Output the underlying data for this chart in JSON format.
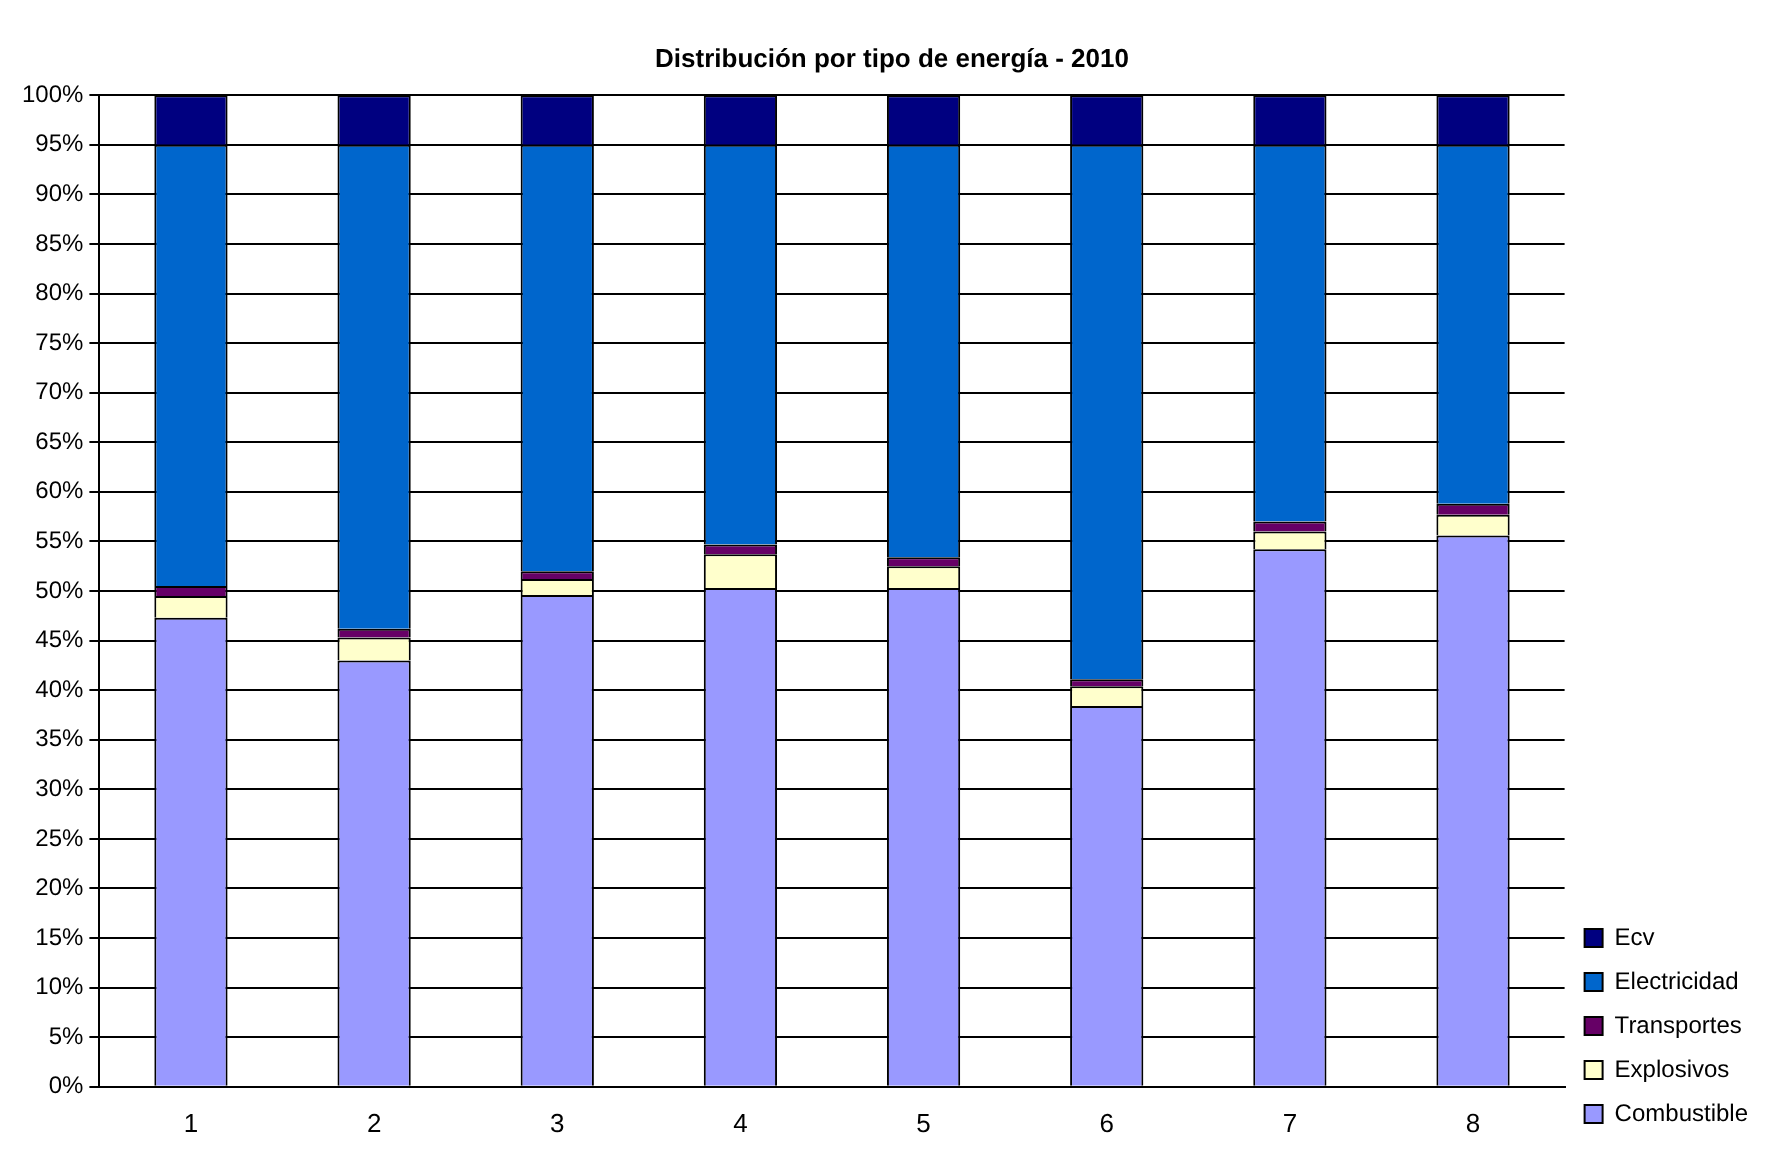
{
  "chart_data": {
    "type": "bar",
    "title": "Distribución por tipo de energía - 2010",
    "categories": [
      "1",
      "2",
      "3",
      "4",
      "5",
      "6",
      "7",
      "8"
    ],
    "stacked": true,
    "legend": "bottom right",
    "grid": "y",
    "ylim": [
      0,
      100
    ],
    "yticks": [
      {
        "value": 0,
        "label": "0%"
      },
      {
        "value": 5,
        "label": "5%"
      },
      {
        "value": 10,
        "label": "10%"
      },
      {
        "value": 15,
        "label": "15%"
      },
      {
        "value": 20,
        "label": "20%"
      },
      {
        "value": 25,
        "label": "25%"
      },
      {
        "value": 30,
        "label": "30%"
      },
      {
        "value": 35,
        "label": "35%"
      },
      {
        "value": 40,
        "label": "40%"
      },
      {
        "value": 45,
        "label": "45%"
      },
      {
        "value": 50,
        "label": "50%"
      },
      {
        "value": 55,
        "label": "55%"
      },
      {
        "value": 60,
        "label": "60%"
      },
      {
        "value": 65,
        "label": "65%"
      },
      {
        "value": 70,
        "label": "70%"
      },
      {
        "value": 75,
        "label": "75%"
      },
      {
        "value": 80,
        "label": "80%"
      },
      {
        "value": 85,
        "label": "85%"
      },
      {
        "value": 90,
        "label": "90%"
      },
      {
        "value": 95,
        "label": "95%"
      },
      {
        "value": 100,
        "label": "100%"
      }
    ],
    "series": [
      {
        "name": "Combustible",
        "color": "#9999ff",
        "values": [
          47.3,
          43.0,
          49.6,
          50.3,
          50.3,
          38.4,
          54.2,
          55.6
        ]
      },
      {
        "name": "Explosivos",
        "color": "#ffffcc",
        "values": [
          2.2,
          2.3,
          1.6,
          3.4,
          2.2,
          2.0,
          1.8,
          2.1
        ]
      },
      {
        "name": "Transportes",
        "color": "#660066",
        "values": [
          1.0,
          0.9,
          0.8,
          1.0,
          0.9,
          0.7,
          1.0,
          1.1
        ]
      },
      {
        "name": "Electricidad",
        "color": "#0066cc",
        "values": [
          44.5,
          48.8,
          43.0,
          40.3,
          41.6,
          53.9,
          38.0,
          36.2
        ]
      },
      {
        "name": "Ecv",
        "color": "#000080",
        "values": [
          5,
          5,
          5,
          5,
          5,
          5,
          5,
          5
        ]
      }
    ]
  }
}
